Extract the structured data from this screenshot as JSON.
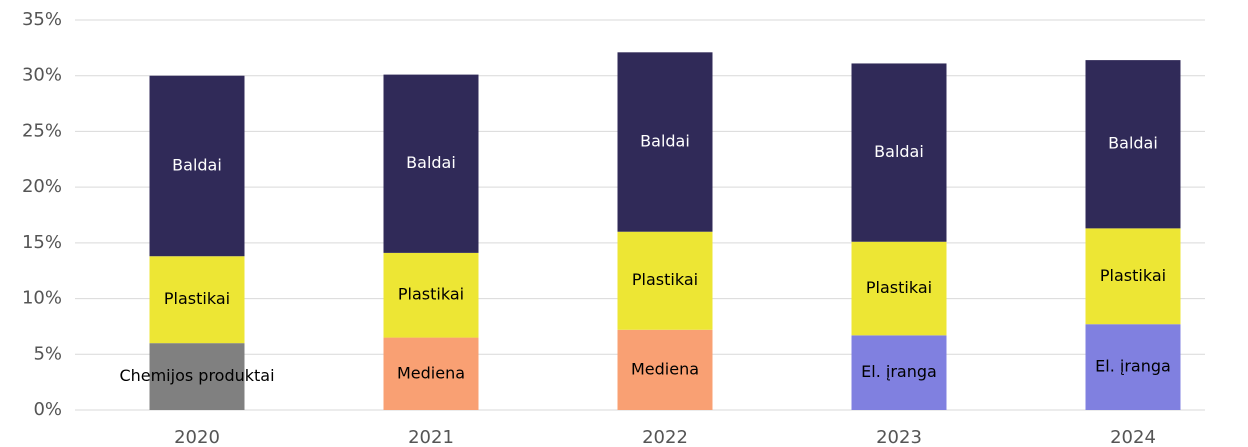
{
  "chart_data": {
    "type": "bar",
    "stacked": true,
    "categories": [
      "2020",
      "2021",
      "2022",
      "2023",
      "2024"
    ],
    "series": [
      {
        "name": "Chemijos produktai",
        "color": "#808080",
        "values": [
          6.0,
          null,
          null,
          null,
          null
        ]
      },
      {
        "name": "Mediena",
        "color": "#f9a073",
        "values": [
          null,
          6.5,
          7.2,
          null,
          null
        ]
      },
      {
        "name": "El. įranga",
        "color": "#8080e0",
        "values": [
          null,
          null,
          null,
          6.7,
          7.7
        ]
      },
      {
        "name": "Plastikai",
        "color": "#ede634",
        "values": [
          7.8,
          7.6,
          8.8,
          8.4,
          8.6
        ]
      },
      {
        "name": "Baldai",
        "color": "#302a58",
        "values": [
          16.2,
          16.0,
          16.1,
          16.0,
          15.1
        ]
      }
    ],
    "ylim": [
      0,
      35
    ],
    "yticks": [
      {
        "value": 0,
        "label": "0%"
      },
      {
        "value": 5,
        "label": "5%"
      },
      {
        "value": 10,
        "label": "10%"
      },
      {
        "value": 15,
        "label": "15%"
      },
      {
        "value": 20,
        "label": "20%"
      },
      {
        "value": 25,
        "label": "25%"
      },
      {
        "value": 30,
        "label": "30%"
      },
      {
        "value": 35,
        "label": "35%"
      }
    ],
    "grid": true
  }
}
